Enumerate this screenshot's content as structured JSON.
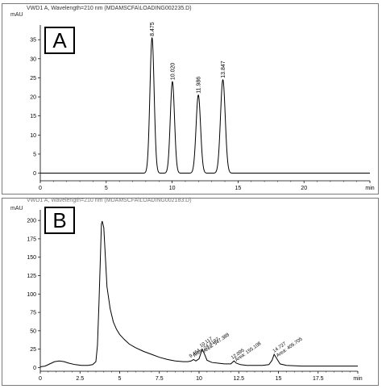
{
  "chart_data": [
    {
      "type": "line",
      "panel_label": "A",
      "header": "VWD1 A, Wavelength=210 nm (MDAMSCFA\\LOADING002235.D)",
      "ylabel": "mAU",
      "x_unit": "min",
      "xlim": [
        0,
        25
      ],
      "ylim": [
        -2,
        38
      ],
      "xticks": [
        0,
        5,
        10,
        15,
        20,
        25
      ],
      "yticks": [
        0,
        5,
        10,
        15,
        20,
        25,
        30,
        35
      ],
      "grid": false,
      "baseline": 0,
      "peaks": [
        {
          "label": "8.475",
          "x": 8.475,
          "y": 35.5,
          "width": 0.16
        },
        {
          "label": "10.020",
          "x": 10.02,
          "y": 24.0,
          "width": 0.16
        },
        {
          "label": "11.986",
          "x": 11.986,
          "y": 20.5,
          "width": 0.17
        },
        {
          "label": "13.847",
          "x": 13.847,
          "y": 24.5,
          "width": 0.18
        }
      ]
    },
    {
      "type": "line",
      "panel_label": "B",
      "header": "VWD1 A, Wavelength=210 nm (MDAMSCFA\\LOADING002183.D)",
      "ylabel": "mAU",
      "x_unit": "min",
      "xlim": [
        0,
        20
      ],
      "ylim": [
        -5,
        210
      ],
      "xticks": [
        0,
        2.5,
        5,
        7.5,
        10,
        12.5,
        15,
        17.5,
        20
      ],
      "xtick_labels": [
        "0",
        "2.5",
        "5",
        "7.5",
        "10",
        "12.5",
        "15",
        "17.5",
        "min"
      ],
      "yticks": [
        0,
        25,
        50,
        75,
        100,
        125,
        150,
        175,
        200
      ],
      "grid": false,
      "curve": [
        [
          0,
          1
        ],
        [
          0.3,
          2
        ],
        [
          0.6,
          5
        ],
        [
          0.9,
          8
        ],
        [
          1.2,
          9
        ],
        [
          1.5,
          8
        ],
        [
          1.8,
          6
        ],
        [
          2.2,
          4
        ],
        [
          2.6,
          3
        ],
        [
          3.0,
          3
        ],
        [
          3.3,
          4
        ],
        [
          3.5,
          8
        ],
        [
          3.6,
          30
        ],
        [
          3.7,
          90
        ],
        [
          3.8,
          160
        ],
        [
          3.85,
          195
        ],
        [
          3.9,
          199
        ],
        [
          4.0,
          190
        ],
        [
          4.1,
          150
        ],
        [
          4.2,
          110
        ],
        [
          4.4,
          80
        ],
        [
          4.6,
          62
        ],
        [
          4.8,
          52
        ],
        [
          5.0,
          45
        ],
        [
          5.3,
          38
        ],
        [
          5.6,
          32
        ],
        [
          6.0,
          27
        ],
        [
          6.5,
          22
        ],
        [
          7.0,
          18
        ],
        [
          7.5,
          14
        ],
        [
          8.0,
          11
        ],
        [
          8.5,
          9
        ],
        [
          9.0,
          8
        ],
        [
          9.3,
          8
        ],
        [
          9.5,
          9
        ],
        [
          9.65,
          11
        ],
        [
          9.8,
          9
        ],
        [
          10.0,
          12
        ],
        [
          10.2,
          25
        ],
        [
          10.35,
          18
        ],
        [
          10.5,
          10
        ],
        [
          10.8,
          7
        ],
        [
          11.2,
          6
        ],
        [
          11.6,
          5
        ],
        [
          12.0,
          5
        ],
        [
          12.2,
          9
        ],
        [
          12.35,
          6
        ],
        [
          12.6,
          4
        ],
        [
          13.0,
          3
        ],
        [
          13.5,
          3
        ],
        [
          14.0,
          3
        ],
        [
          14.4,
          4
        ],
        [
          14.6,
          10
        ],
        [
          14.73,
          18
        ],
        [
          14.9,
          12
        ],
        [
          15.1,
          5
        ],
        [
          15.5,
          3
        ],
        [
          16.5,
          2
        ],
        [
          18.0,
          2
        ],
        [
          19.5,
          2
        ],
        [
          20.0,
          2
        ]
      ],
      "peak_labels": [
        {
          "text": "9.464",
          "x": 9.46,
          "y": 11
        },
        {
          "text": "Area: 24.4197",
          "x": 9.7,
          "y": 12
        },
        {
          "text": "10.117",
          "x": 10.12,
          "y": 25
        },
        {
          "text": "Area: 547.388",
          "x": 10.35,
          "y": 18
        },
        {
          "text": "12.095",
          "x": 12.1,
          "y": 9
        },
        {
          "text": "Area: 155.108",
          "x": 12.35,
          "y": 6
        },
        {
          "text": "14.727",
          "x": 14.73,
          "y": 18
        },
        {
          "text": "Area: 405.705",
          "x": 14.95,
          "y": 12
        }
      ]
    }
  ]
}
